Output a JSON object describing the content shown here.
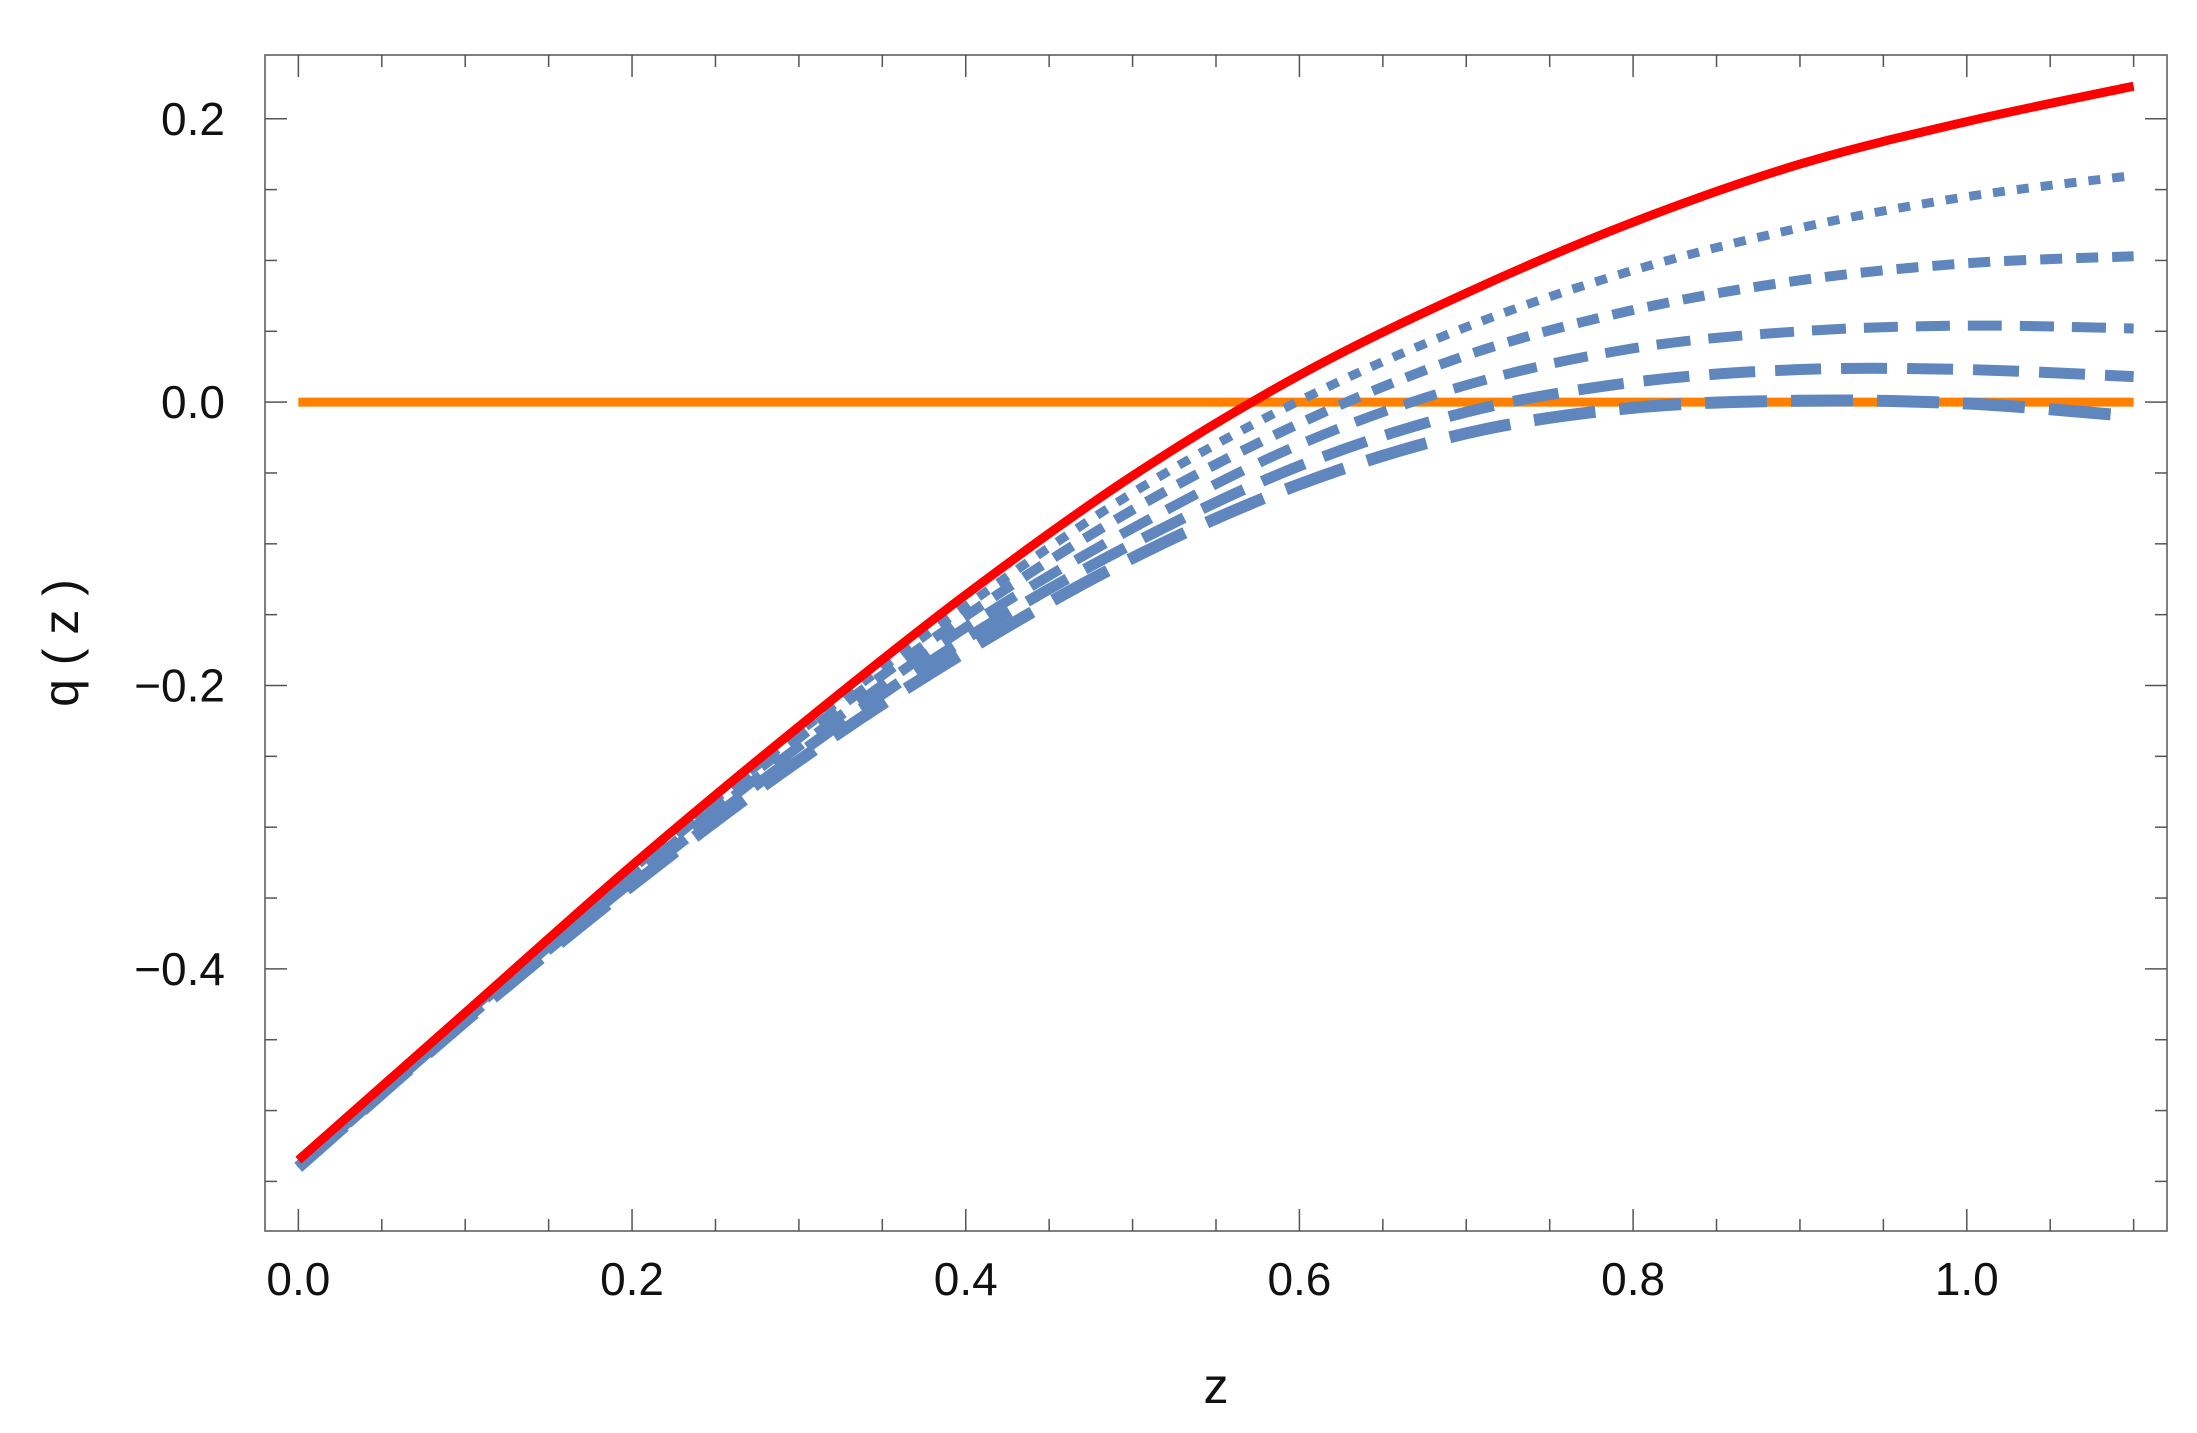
{
  "chart_data": {
    "type": "line",
    "xlabel": "z",
    "ylabel": "q ( z )",
    "xlim": [
      -0.02,
      1.12
    ],
    "ylim": [
      -0.585,
      0.245
    ],
    "xticks": [
      {
        "value": 0.0,
        "label": "0.0"
      },
      {
        "value": 0.2,
        "label": "0.2"
      },
      {
        "value": 0.4,
        "label": "0.4"
      },
      {
        "value": 0.6,
        "label": "0.6"
      },
      {
        "value": 0.8,
        "label": "0.8"
      },
      {
        "value": 1.0,
        "label": "1.0"
      }
    ],
    "yticks": [
      {
        "value": 0.2,
        "label": "0.2"
      },
      {
        "value": 0.0,
        "label": "0.0"
      },
      {
        "value": -0.2,
        "label": "−0.2"
      },
      {
        "value": -0.4,
        "label": "−0.4"
      }
    ],
    "grid": false,
    "series": [
      {
        "color": "#ff8000",
        "dash": "solid",
        "x": [
          0.0,
          1.1
        ],
        "y": [
          0.0,
          0.0
        ]
      },
      {
        "color": "#5f86bd",
        "dash": "long",
        "x": [
          0.0,
          0.1,
          0.2,
          0.3,
          0.4,
          0.5,
          0.6,
          0.7,
          0.8,
          0.9,
          1.0,
          1.1
        ],
        "y": [
          -0.54,
          -0.437,
          -0.341,
          -0.253,
          -0.176,
          -0.11,
          -0.058,
          -0.022,
          -0.004,
          0.001,
          -0.001,
          -0.01
        ]
      },
      {
        "color": "#5f86bd",
        "dash": "medium-long",
        "x": [
          0.0,
          0.1,
          0.2,
          0.3,
          0.4,
          0.5,
          0.6,
          0.7,
          0.8,
          0.9,
          1.0,
          1.1
        ],
        "y": [
          -0.54,
          -0.436,
          -0.338,
          -0.248,
          -0.167,
          -0.1,
          -0.045,
          -0.007,
          0.014,
          0.023,
          0.023,
          0.018
        ]
      },
      {
        "color": "#5f86bd",
        "dash": "medium",
        "x": [
          0.0,
          0.1,
          0.2,
          0.3,
          0.4,
          0.5,
          0.6,
          0.7,
          0.8,
          0.9,
          1.0,
          1.1
        ],
        "y": [
          -0.54,
          -0.435,
          -0.335,
          -0.243,
          -0.159,
          -0.089,
          -0.03,
          0.012,
          0.038,
          0.05,
          0.054,
          0.052
        ]
      },
      {
        "color": "#5f86bd",
        "dash": "short",
        "x": [
          0.0,
          0.1,
          0.2,
          0.3,
          0.4,
          0.5,
          0.6,
          0.7,
          0.8,
          0.9,
          1.0,
          1.1
        ],
        "y": [
          -0.54,
          -0.434,
          -0.332,
          -0.237,
          -0.151,
          -0.076,
          -0.015,
          0.033,
          0.065,
          0.086,
          0.098,
          0.103
        ]
      },
      {
        "color": "#5f86bd",
        "dash": "dotted",
        "x": [
          0.0,
          0.1,
          0.2,
          0.3,
          0.4,
          0.5,
          0.6,
          0.7,
          0.8,
          0.9,
          1.0,
          1.1
        ],
        "y": [
          -0.54,
          -0.433,
          -0.33,
          -0.233,
          -0.144,
          -0.064,
          0.001,
          0.053,
          0.093,
          0.123,
          0.145,
          0.16
        ]
      },
      {
        "color": "#ff0000",
        "dash": "solid",
        "x": [
          0.0,
          0.1,
          0.2,
          0.3,
          0.4,
          0.5,
          0.6,
          0.7,
          0.8,
          0.9,
          1.0,
          1.1
        ],
        "y": [
          -0.535,
          -0.431,
          -0.327,
          -0.229,
          -0.136,
          -0.052,
          0.019,
          0.077,
          0.127,
          0.168,
          0.198,
          0.223
        ]
      }
    ]
  }
}
